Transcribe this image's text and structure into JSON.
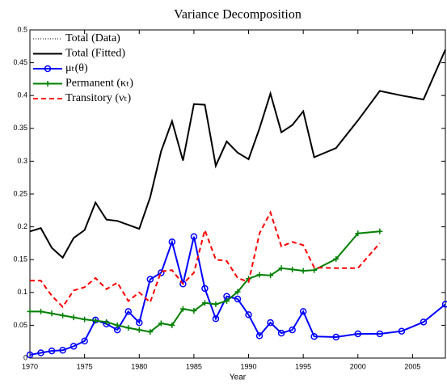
{
  "chart_data": {
    "type": "line",
    "title": "Variance Decomposition",
    "xlabel": "Year",
    "x": [
      1970,
      1971,
      1972,
      1973,
      1974,
      1975,
      1976,
      1977,
      1978,
      1979,
      1980,
      1981,
      1982,
      1983,
      1984,
      1985,
      1986,
      1987,
      1988,
      1989,
      1990,
      1991,
      1992,
      1993,
      1994,
      1995,
      1996,
      1998,
      2000,
      2002,
      2004,
      2006,
      2008
    ],
    "series": [
      {
        "name": "Total (Data)",
        "color": "#000000",
        "style": "dotted",
        "marker": "none",
        "values": [
          0.193,
          0.198,
          0.168,
          0.153,
          0.183,
          0.195,
          0.237,
          0.211,
          0.209,
          0.203,
          0.197,
          0.245,
          0.315,
          0.361,
          0.301,
          0.387,
          0.386,
          0.293,
          0.33,
          0.313,
          0.303,
          0.35,
          0.403,
          0.344,
          0.355,
          0.376,
          0.306,
          0.32,
          0.362,
          0.407,
          0.4,
          0.394,
          0.47
        ]
      },
      {
        "name": "Total (Fitted)",
        "color": "#000000",
        "style": "solid",
        "marker": "none",
        "values": [
          0.193,
          0.198,
          0.168,
          0.153,
          0.183,
          0.195,
          0.237,
          0.211,
          0.209,
          0.203,
          0.197,
          0.245,
          0.315,
          0.361,
          0.301,
          0.387,
          0.386,
          0.293,
          0.33,
          0.313,
          0.303,
          0.35,
          0.403,
          0.344,
          0.355,
          0.376,
          0.306,
          0.32,
          0.362,
          0.407,
          0.4,
          0.394,
          0.47
        ]
      },
      {
        "name": "μₜ(θ)",
        "color": "#0000ff",
        "style": "solid",
        "marker": "circle",
        "values": [
          0.005,
          0.008,
          0.011,
          0.012,
          0.018,
          0.026,
          0.058,
          0.052,
          0.043,
          0.071,
          0.054,
          0.12,
          0.13,
          0.177,
          0.113,
          0.185,
          0.106,
          0.06,
          0.094,
          0.09,
          0.066,
          0.034,
          0.054,
          0.038,
          0.043,
          0.071,
          0.033,
          0.032,
          0.037,
          0.037,
          0.041,
          0.055,
          0.082
        ]
      },
      {
        "name": "Permanent (κₜ)",
        "color": "#008000",
        "style": "solid",
        "marker": "plus",
        "values": [
          0.071,
          0.071,
          0.068,
          0.065,
          0.062,
          0.059,
          0.057,
          0.055,
          0.05,
          0.046,
          0.043,
          0.04,
          0.053,
          0.05,
          0.075,
          0.072,
          0.084,
          0.082,
          0.087,
          0.101,
          0.121,
          0.127,
          0.126,
          0.137,
          0.135,
          0.133,
          0.134,
          0.151,
          0.19,
          0.193,
          null,
          null,
          null
        ]
      },
      {
        "name": "Transitory (νₜ)",
        "color": "#ff0000",
        "style": "dashed",
        "marker": "none",
        "values": [
          0.118,
          0.118,
          0.095,
          0.078,
          0.103,
          0.108,
          0.122,
          0.105,
          0.115,
          0.087,
          0.1,
          0.085,
          0.132,
          0.134,
          0.113,
          0.13,
          0.195,
          0.15,
          0.148,
          0.122,
          0.116,
          0.19,
          0.222,
          0.17,
          0.177,
          0.172,
          0.138,
          0.137,
          0.137,
          0.175,
          null,
          null,
          null
        ]
      }
    ],
    "xlim": [
      1970,
      2008
    ],
    "xticks": [
      1970,
      1975,
      1980,
      1985,
      1990,
      1995,
      2000,
      2005
    ],
    "ylim": [
      0,
      0.5
    ],
    "yticks": [
      0,
      0.05,
      0.1,
      0.15,
      0.2,
      0.25,
      0.3,
      0.35,
      0.4,
      0.45,
      0.5
    ],
    "grid": false,
    "legend": "upper-left"
  }
}
